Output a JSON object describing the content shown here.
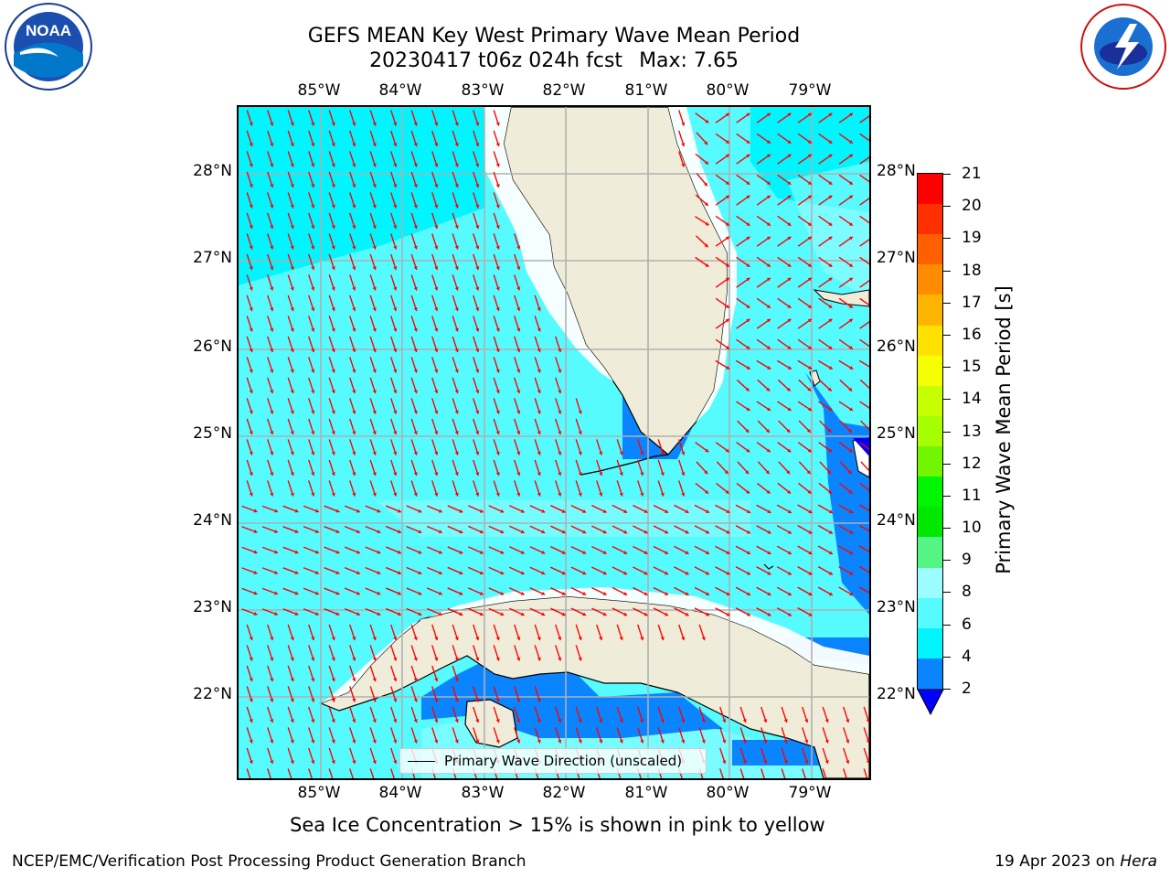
{
  "header": {
    "title_line1": "GEFS MEAN Key West Primary Wave Mean Period",
    "title_line2": "20230417 t06z 024h fcst",
    "max_text": "Max: 7.65"
  },
  "map": {
    "lon_labels": [
      "85°W",
      "84°W",
      "83°W",
      "82°W",
      "81°W",
      "80°W",
      "79°W"
    ],
    "lat_labels": [
      "28°N",
      "27°N",
      "26°N",
      "25°N",
      "24°N",
      "23°N",
      "22°N"
    ],
    "colors": {
      "ocean_light": "#56fbff",
      "ocean_mid": "#00f5ff",
      "ocean_pale": "#9cfdff",
      "ocean_dark": "#0a84ff",
      "land": "#efedda",
      "arrow": "#ff0000",
      "grid": "#b0b0b0"
    },
    "legend_label": "Primary Wave Direction (unscaled)"
  },
  "colorbar": {
    "label": "Primary Wave Mean Period [s]",
    "ticks": [
      "21",
      "20",
      "19",
      "18",
      "17",
      "16",
      "15",
      "14",
      "13",
      "12",
      "11",
      "10",
      "9",
      "8",
      "6",
      "4",
      "2"
    ],
    "colors": [
      "#ff0000",
      "#ff3000",
      "#ff5f00",
      "#ff8c00",
      "#ffb500",
      "#ffe100",
      "#f5ff00",
      "#c6ff00",
      "#a6ff00",
      "#71f500",
      "#00f500",
      "#00e800",
      "#54f584",
      "#9cfdff",
      "#56fbff",
      "#00f5ff",
      "#0a84ff"
    ],
    "under_color": "#0000ff"
  },
  "notes": {
    "sea_ice": "Sea Ice Concentration > 15% is shown in pink to yellow"
  },
  "footer": {
    "left": "NCEP/EMC/Verification Post Processing Product Generation Branch",
    "right_prefix": "19 Apr 2023 on ",
    "right_machine": "Hera"
  },
  "logos": {
    "noaa_text": "NOAA",
    "nws_text": "NATIONAL WEATHER SERVICE"
  }
}
